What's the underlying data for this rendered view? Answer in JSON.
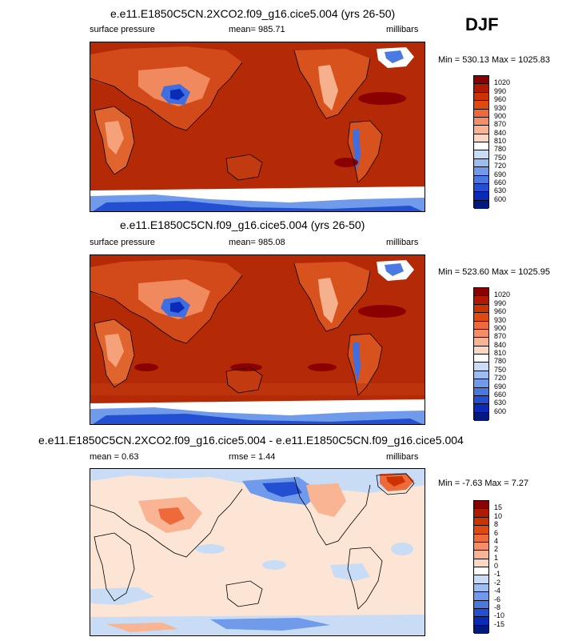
{
  "season": "DJF",
  "panels": [
    {
      "title": "e.e11.E1850C5CN.2XCO2.f09_g16.cice5.004 (yrs 26-50)",
      "left_label": "surface pressure",
      "center_label": "mean= 985.71",
      "right_label": "millibars",
      "stats": "Min = 530.13 Max = 1025.83"
    },
    {
      "title": "e.e11.E1850C5CN.f09_g16.cice5.004 (yrs 26-50)",
      "left_label": "surface pressure",
      "center_label": "mean= 985.08",
      "right_label": "millibars",
      "stats": "Min = 523.60 Max = 1025.95"
    },
    {
      "title": "e.e11.E1850C5CN.2XCO2.f09_g16.cice5.004 - e.e11.E1850C5CN.f09_g16.cice5.004",
      "left_label": "mean =   0.63",
      "center_label": "rmse =   1.44",
      "right_label": "millibars",
      "stats": "Min =  -7.63 Max =   7.27"
    }
  ],
  "colorbars": {
    "pressure": {
      "labels": [
        "1020",
        "990",
        "960",
        "930",
        "900",
        "870",
        "840",
        "810",
        "780",
        "750",
        "720",
        "690",
        "660",
        "630",
        "600"
      ],
      "colors": [
        "#8b0000",
        "#b11a00",
        "#cc3300",
        "#e04a10",
        "#ee6a3a",
        "#f58d66",
        "#f9b493",
        "#fcd8c4",
        "#ffffff",
        "#c8dcf5",
        "#9bbdf0",
        "#6f9bea",
        "#4878e0",
        "#2350d3",
        "#0a2ab8",
        "#001a80"
      ]
    },
    "difference": {
      "labels": [
        "15",
        "10",
        "8",
        "6",
        "4",
        "2",
        "1",
        "0",
        "-1",
        "-2",
        "-4",
        "-6",
        "-8",
        "-10",
        "-15"
      ],
      "colors": [
        "#8b0000",
        "#b11a00",
        "#cc3300",
        "#e04a10",
        "#ee6a3a",
        "#f58d66",
        "#f9b493",
        "#fcd8c4",
        "#ffffff",
        "#c8dcf5",
        "#9bbdf0",
        "#6f9bea",
        "#4878e0",
        "#2350d3",
        "#0a2ab8",
        "#001a80"
      ]
    }
  },
  "map_colors": {
    "ocean_high": "#b52a06",
    "low_dark": "#8b0000",
    "diff_background": "#fde5d5"
  }
}
